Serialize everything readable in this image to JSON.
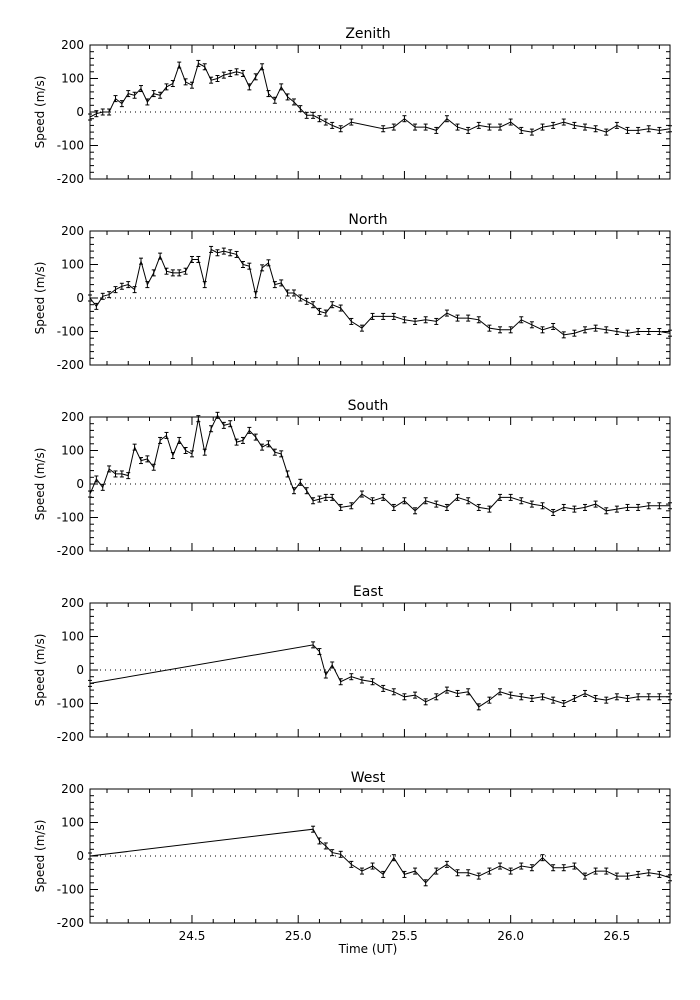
{
  "figure": {
    "xlabel": "Time (UT)",
    "ylabel": "Speed (m/s)",
    "x_ticks": [
      "24.5",
      "25.0",
      "25.5",
      "26.0",
      "26.5"
    ],
    "y_ticks": [
      "200",
      "100",
      "0",
      "-100",
      "-200"
    ]
  },
  "chart_data": [
    {
      "type": "line",
      "title": "Zenith",
      "xlabel": "",
      "ylabel": "Speed (m/s)",
      "xlim": [
        24.02,
        26.75
      ],
      "ylim": [
        -200,
        200
      ],
      "zero_line": "dotted",
      "series": [
        {
          "x": [
            24.02,
            24.05,
            24.08,
            24.11,
            24.14,
            24.17,
            24.2,
            24.23,
            24.26,
            24.29,
            24.32,
            24.35,
            24.38,
            24.41,
            24.44,
            24.47,
            24.5,
            24.53,
            24.56,
            24.59,
            24.62,
            24.65,
            24.68,
            24.71,
            24.74,
            24.77,
            24.8,
            24.83,
            24.86,
            24.89,
            24.92,
            24.95,
            24.98,
            25.01,
            25.04,
            25.07,
            25.1,
            25.13,
            25.16,
            25.2,
            25.25,
            25.4,
            25.45,
            25.5,
            25.55,
            25.6,
            25.65,
            25.7,
            25.75,
            25.8,
            25.85,
            25.9,
            25.95,
            26.0,
            26.05,
            26.1,
            26.15,
            26.2,
            26.25,
            26.3,
            26.35,
            26.4,
            26.45,
            26.5,
            26.55,
            26.6,
            26.65,
            26.7,
            26.75
          ],
          "y": [
            -15,
            -5,
            0,
            0,
            40,
            25,
            55,
            50,
            70,
            30,
            55,
            50,
            75,
            85,
            140,
            90,
            80,
            145,
            135,
            95,
            100,
            110,
            115,
            120,
            115,
            75,
            105,
            135,
            55,
            35,
            75,
            45,
            30,
            10,
            -10,
            -10,
            -20,
            -30,
            -40,
            -50,
            -30,
            -50,
            -45,
            -20,
            -45,
            -45,
            -55,
            -20,
            -45,
            -55,
            -40,
            -45,
            -45,
            -30,
            -55,
            -60,
            -45,
            -40,
            -30,
            -40,
            -45,
            -50,
            -60,
            -40,
            -55,
            -55,
            -50,
            -55,
            -50
          ]
        }
      ]
    },
    {
      "type": "line",
      "title": "North",
      "xlabel": "",
      "ylabel": "Speed (m/s)",
      "xlim": [
        24.02,
        26.75
      ],
      "ylim": [
        -200,
        200
      ],
      "zero_line": "dotted",
      "series": [
        {
          "x": [
            24.02,
            24.05,
            24.08,
            24.11,
            24.14,
            24.17,
            24.2,
            24.23,
            24.26,
            24.29,
            24.32,
            24.35,
            24.38,
            24.41,
            24.44,
            24.47,
            24.5,
            24.53,
            24.56,
            24.59,
            24.62,
            24.65,
            24.68,
            24.71,
            24.74,
            24.77,
            24.8,
            24.83,
            24.86,
            24.89,
            24.92,
            24.95,
            24.98,
            25.01,
            25.04,
            25.07,
            25.1,
            25.13,
            25.16,
            25.2,
            25.25,
            25.3,
            25.35,
            25.4,
            25.45,
            25.5,
            25.55,
            25.6,
            25.65,
            25.7,
            25.75,
            25.8,
            25.85,
            25.9,
            25.95,
            26.0,
            26.05,
            26.1,
            26.15,
            26.2,
            26.25,
            26.3,
            26.35,
            26.4,
            26.45,
            26.5,
            26.55,
            26.6,
            26.65,
            26.7,
            26.75
          ],
          "y": [
            0,
            -25,
            5,
            10,
            25,
            35,
            40,
            25,
            110,
            40,
            75,
            125,
            80,
            75,
            75,
            80,
            115,
            115,
            40,
            145,
            135,
            140,
            135,
            130,
            100,
            95,
            10,
            90,
            105,
            40,
            45,
            15,
            15,
            0,
            -10,
            -20,
            -40,
            -45,
            -20,
            -30,
            -70,
            -90,
            -55,
            -55,
            -55,
            -65,
            -70,
            -65,
            -70,
            -45,
            -60,
            -60,
            -65,
            -90,
            -95,
            -95,
            -65,
            -80,
            -95,
            -85,
            -110,
            -105,
            -95,
            -90,
            -95,
            -100,
            -105,
            -100,
            -100,
            -100,
            -105
          ]
        }
      ]
    },
    {
      "type": "line",
      "title": "South",
      "xlabel": "",
      "ylabel": "Speed (m/s)",
      "xlim": [
        24.02,
        26.75
      ],
      "ylim": [
        -200,
        200
      ],
      "zero_line": "dotted",
      "series": [
        {
          "x": [
            24.02,
            24.05,
            24.08,
            24.11,
            24.14,
            24.17,
            24.2,
            24.23,
            24.26,
            24.29,
            24.32,
            24.35,
            24.38,
            24.41,
            24.44,
            24.47,
            24.5,
            24.53,
            24.56,
            24.59,
            24.62,
            24.65,
            24.68,
            24.71,
            24.74,
            24.77,
            24.8,
            24.83,
            24.86,
            24.89,
            24.92,
            24.95,
            24.98,
            25.01,
            25.04,
            25.07,
            25.1,
            25.13,
            25.16,
            25.2,
            25.25,
            25.3,
            25.35,
            25.4,
            25.45,
            25.5,
            25.55,
            25.6,
            25.65,
            25.7,
            25.75,
            25.8,
            25.85,
            25.9,
            25.95,
            26.0,
            26.05,
            26.1,
            26.15,
            26.2,
            26.25,
            26.3,
            26.35,
            26.4,
            26.45,
            26.5,
            26.55,
            26.6,
            26.65,
            26.7,
            26.75
          ],
          "y": [
            -30,
            15,
            -10,
            45,
            30,
            30,
            25,
            110,
            70,
            75,
            50,
            130,
            145,
            85,
            130,
            100,
            90,
            195,
            95,
            165,
            205,
            175,
            180,
            125,
            130,
            160,
            140,
            110,
            120,
            95,
            90,
            30,
            -20,
            5,
            -20,
            -50,
            -45,
            -40,
            -40,
            -70,
            -65,
            -30,
            -50,
            -40,
            -70,
            -50,
            -80,
            -50,
            -60,
            -70,
            -40,
            -50,
            -70,
            -75,
            -40,
            -40,
            -50,
            -60,
            -65,
            -85,
            -70,
            -75,
            -70,
            -60,
            -80,
            -75,
            -70,
            -70,
            -65,
            -65,
            -65
          ]
        }
      ]
    },
    {
      "type": "line",
      "title": "East",
      "xlabel": "",
      "ylabel": "Speed (m/s)",
      "xlim": [
        24.02,
        26.75
      ],
      "ylim": [
        -200,
        200
      ],
      "zero_line": "dotted",
      "series": [
        {
          "x": [
            24.02,
            25.07,
            25.1,
            25.13,
            25.16,
            25.2,
            25.25,
            25.3,
            25.35,
            25.4,
            25.45,
            25.5,
            25.55,
            25.6,
            25.65,
            25.7,
            25.75,
            25.8,
            25.85,
            25.9,
            25.95,
            26.0,
            26.05,
            26.1,
            26.15,
            26.2,
            26.25,
            26.3,
            26.35,
            26.4,
            26.45,
            26.5,
            26.55,
            26.6,
            26.65,
            26.7,
            26.75
          ],
          "y": [
            -40,
            75,
            55,
            -15,
            15,
            -35,
            -20,
            -30,
            -35,
            -55,
            -65,
            -80,
            -75,
            -95,
            -80,
            -60,
            -70,
            -65,
            -110,
            -90,
            -65,
            -75,
            -80,
            -85,
            -80,
            -90,
            -100,
            -85,
            -70,
            -85,
            -90,
            -80,
            -85,
            -80,
            -80,
            -80,
            -80
          ]
        }
      ]
    },
    {
      "type": "line",
      "title": "West",
      "xlabel": "Time (UT)",
      "ylabel": "Speed (m/s)",
      "xlim": [
        24.02,
        26.75
      ],
      "ylim": [
        -200,
        200
      ],
      "zero_line": "dotted",
      "series": [
        {
          "x": [
            24.02,
            25.07,
            25.1,
            25.13,
            25.16,
            25.2,
            25.25,
            25.3,
            25.35,
            25.4,
            25.45,
            25.5,
            25.55,
            25.6,
            25.65,
            25.7,
            25.75,
            25.8,
            25.85,
            25.9,
            25.95,
            26.0,
            26.05,
            26.1,
            26.15,
            26.2,
            26.25,
            26.3,
            26.35,
            26.4,
            26.45,
            26.5,
            26.55,
            26.6,
            26.65,
            26.7,
            26.75
          ],
          "y": [
            0,
            80,
            45,
            30,
            10,
            5,
            -25,
            -45,
            -30,
            -55,
            -5,
            -55,
            -45,
            -80,
            -45,
            -25,
            -50,
            -50,
            -60,
            -45,
            -30,
            -45,
            -30,
            -35,
            -5,
            -35,
            -35,
            -30,
            -60,
            -45,
            -45,
            -60,
            -60,
            -55,
            -50,
            -55,
            -65
          ]
        }
      ]
    }
  ]
}
